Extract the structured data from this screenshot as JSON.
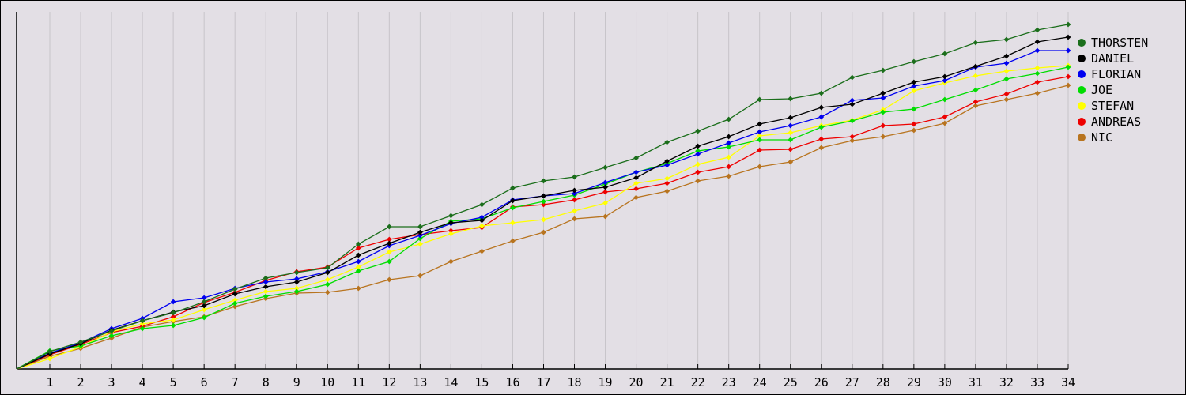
{
  "chart_data": {
    "type": "line",
    "title": "",
    "xlabel": "",
    "ylabel": "",
    "grid": {
      "vertical": true,
      "horizontal": false
    },
    "legend_position": "right",
    "point_marker": "diamond",
    "legend_marker": "filled-circle",
    "y_axis": {
      "tick_labels_visible": false,
      "note": "y-axis has no tick labels in source; series values are estimated cumulative scores in plot pixel units above the baseline",
      "range": [
        0,
        452
      ]
    },
    "x_values": [
      0,
      1,
      2,
      3,
      4,
      5,
      6,
      7,
      8,
      9,
      10,
      11,
      12,
      13,
      14,
      15,
      16,
      17,
      18,
      19,
      20,
      21,
      22,
      23,
      24,
      25,
      26,
      27,
      28,
      29,
      30,
      31,
      32,
      33,
      34
    ],
    "x_tick_labels": [
      "1",
      "2",
      "3",
      "4",
      "5",
      "6",
      "7",
      "8",
      "9",
      "10",
      "11",
      "12",
      "13",
      "14",
      "15",
      "16",
      "17",
      "18",
      "19",
      "20",
      "21",
      "22",
      "23",
      "24",
      "25",
      "26",
      "27",
      "28",
      "29",
      "30",
      "31",
      "32",
      "33",
      "34"
    ],
    "series": [
      {
        "name": "THORSTEN",
        "color": "#1b6e1b",
        "values": [
          0,
          22,
          34,
          48,
          61,
          71,
          85,
          101,
          115,
          122,
          128,
          158,
          180,
          180,
          194,
          208,
          229,
          238,
          243,
          255,
          267,
          287,
          301,
          316,
          341,
          342,
          349,
          369,
          378,
          389,
          399,
          413,
          417,
          429,
          436
        ]
      },
      {
        "name": "DANIEL",
        "color": "#000000",
        "values": [
          0,
          19,
          32,
          49,
          61,
          72,
          80,
          95,
          104,
          110,
          122,
          144,
          159,
          173,
          185,
          188,
          213,
          219,
          226,
          230,
          242,
          263,
          282,
          294,
          310,
          318,
          331,
          335,
          349,
          363,
          370,
          383,
          396,
          414,
          420
        ]
      },
      {
        "name": "FLORIAN",
        "color": "#0000f0",
        "values": [
          0,
          20,
          33,
          51,
          64,
          85,
          90,
          102,
          110,
          114,
          123,
          136,
          156,
          169,
          184,
          192,
          214,
          219,
          222,
          236,
          249,
          258,
          272,
          286,
          300,
          308,
          319,
          340,
          343,
          358,
          365,
          382,
          387,
          403,
          403
        ]
      },
      {
        "name": "JOE",
        "color": "#00dd00",
        "values": [
          0,
          23,
          29,
          42,
          51,
          55,
          65,
          83,
          92,
          98,
          107,
          124,
          136,
          165,
          187,
          190,
          204,
          212,
          220,
          234,
          249,
          260,
          276,
          281,
          290,
          290,
          306,
          314,
          325,
          329,
          341,
          353,
          367,
          374,
          382
        ]
      },
      {
        "name": "STEFAN",
        "color": "#ffff00",
        "values": [
          0,
          13,
          28,
          47,
          57,
          62,
          75,
          87,
          98,
          102,
          113,
          129,
          148,
          158,
          171,
          181,
          185,
          189,
          200,
          210,
          235,
          241,
          259,
          268,
          295,
          299,
          308,
          315,
          328,
          352,
          362,
          371,
          377,
          381,
          384
        ]
      },
      {
        "name": "ANDREAS",
        "color": "#ee0000",
        "values": [
          0,
          18,
          31,
          46,
          54,
          66,
          84,
          97,
          112,
          123,
          129,
          153,
          164,
          170,
          175,
          179,
          205,
          208,
          214,
          224,
          228,
          235,
          249,
          256,
          277,
          278,
          291,
          294,
          308,
          310,
          319,
          338,
          348,
          363,
          370
        ]
      },
      {
        "name": "NIC",
        "color": "#b8741f",
        "values": [
          0,
          16,
          26,
          39,
          53,
          60,
          66,
          79,
          89,
          96,
          97,
          102,
          113,
          118,
          136,
          149,
          162,
          173,
          190,
          193,
          217,
          225,
          238,
          244,
          256,
          262,
          280,
          289,
          294,
          302,
          311,
          333,
          341,
          349,
          359
        ]
      }
    ]
  },
  "style": {
    "background": "#e3dfe5",
    "gridline": "#c7c4c9",
    "axis": "#000000",
    "text": "#000000"
  }
}
